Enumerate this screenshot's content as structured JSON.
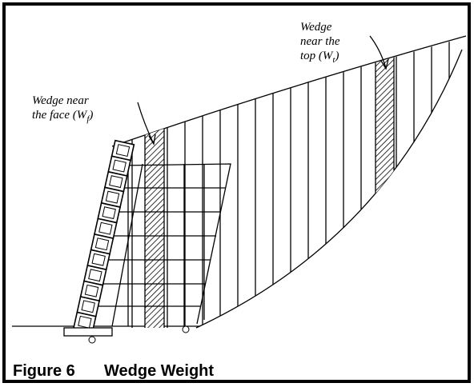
{
  "figure": {
    "caption": {
      "number": "Figure 6",
      "title": "Wedge Weight"
    },
    "labels": [
      {
        "line1": "Wedge near",
        "line2": "the face (W",
        "sub": "f",
        "close": ")"
      },
      {
        "line1": "Wedge",
        "line2": "near the",
        "line3": "top (W",
        "sub": "t",
        "close": ")"
      }
    ]
  }
}
